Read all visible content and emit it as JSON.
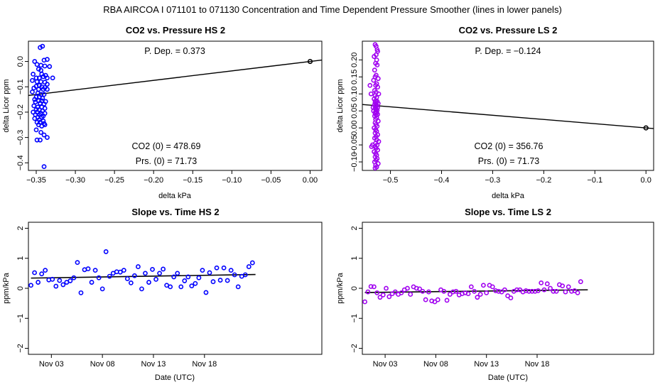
{
  "page_title": "RBA   AIRCOA I   071101 to 071130   Concentration and Time Dependent Pressure Smoother (lines in lower panels)",
  "colors": {
    "hs": "#0000ff",
    "ls": "#a000f0",
    "axis": "#000000",
    "line": "#000000"
  },
  "chart_data": [
    {
      "id": "hs-co2",
      "type": "scatter",
      "title": "CO2 vs. Pressure HS 2",
      "xlabel": "delta kPa",
      "ylabel": "delta Licor ppm",
      "xlim": [
        -0.36,
        0.015
      ],
      "ylim": [
        -0.43,
        0.08
      ],
      "xticks": [
        -0.35,
        -0.3,
        -0.25,
        -0.2,
        -0.15,
        -0.1,
        -0.05,
        0.0
      ],
      "xtick_labels": [
        "−0.35",
        "−0.30",
        "−0.25",
        "−0.20",
        "−0.15",
        "−0.10",
        "−0.05",
        "0.00"
      ],
      "yticks": [
        -0.4,
        -0.3,
        -0.2,
        -0.1,
        0.0
      ],
      "ytick_labels": [
        "−0.4",
        "−0.3",
        "−0.2",
        "−0.1",
        "0.0"
      ],
      "p_dep": "P. Dep. =  0.373",
      "co2_0": "CO2 (0) =  478.69",
      "prs_0": "Prs. (0) =  71.73",
      "fit_line": {
        "slope": 0.373,
        "intercept": 0.0
      },
      "origin_point": [
        0.0,
        0.0
      ],
      "series": [
        {
          "name": "HS",
          "color": "#0000ff",
          "x": [
            -0.349,
            -0.345,
            -0.342,
            -0.34,
            -0.336,
            -0.352,
            -0.344,
            -0.339,
            -0.333,
            -0.347,
            -0.354,
            -0.343,
            -0.338,
            -0.35,
            -0.346,
            -0.341,
            -0.336,
            -0.329,
            -0.355,
            -0.349,
            -0.344,
            -0.339,
            -0.346,
            -0.35,
            -0.343,
            -0.339,
            -0.353,
            -0.347,
            -0.341,
            -0.336,
            -0.355,
            -0.348,
            -0.344,
            -0.34,
            -0.35,
            -0.346,
            -0.342,
            -0.352,
            -0.347,
            -0.343,
            -0.338,
            -0.351,
            -0.345,
            -0.34,
            -0.353,
            -0.348,
            -0.343,
            -0.339,
            -0.35,
            -0.346,
            -0.342,
            -0.354,
            -0.349,
            -0.344,
            -0.339,
            -0.351,
            -0.346,
            -0.341,
            -0.348,
            -0.343,
            -0.352,
            -0.346,
            -0.341,
            -0.349,
            -0.345,
            -0.34,
            -0.347,
            -0.343,
            -0.339,
            -0.35,
            -0.344,
            -0.34,
            -0.336,
            -0.349,
            -0.345,
            -0.34,
            -0.336,
            -0.344
          ],
          "y": [
            -0.012,
            0.055,
            0.06,
            0.005,
            0.008,
            0.0,
            -0.015,
            -0.018,
            -0.02,
            -0.03,
            -0.05,
            -0.05,
            -0.055,
            -0.065,
            -0.065,
            -0.06,
            -0.065,
            -0.065,
            -0.075,
            -0.08,
            -0.08,
            -0.082,
            -0.095,
            -0.098,
            -0.1,
            -0.103,
            -0.105,
            -0.11,
            -0.11,
            -0.11,
            -0.12,
            -0.125,
            -0.13,
            -0.13,
            -0.14,
            -0.14,
            -0.145,
            -0.15,
            -0.155,
            -0.155,
            -0.158,
            -0.16,
            -0.165,
            -0.168,
            -0.175,
            -0.18,
            -0.18,
            -0.185,
            -0.19,
            -0.19,
            -0.195,
            -0.2,
            -0.2,
            -0.205,
            -0.205,
            -0.21,
            -0.21,
            -0.215,
            -0.22,
            -0.22,
            -0.225,
            -0.23,
            -0.235,
            -0.24,
            -0.24,
            -0.245,
            -0.25,
            -0.255,
            -0.25,
            -0.27,
            -0.28,
            -0.29,
            -0.3,
            -0.31,
            -0.31,
            -0.415,
            -0.09,
            -0.035
          ]
        }
      ]
    },
    {
      "id": "ls-co2",
      "type": "scatter",
      "title": "CO2 vs. Pressure LS 2",
      "xlabel": "delta kPa",
      "ylabel": "delta Licor ppm",
      "xlim": [
        -0.555,
        0.015
      ],
      "ylim": [
        -0.125,
        0.255
      ],
      "xticks": [
        -0.5,
        -0.4,
        -0.3,
        -0.2,
        -0.1,
        0.0
      ],
      "xtick_labels": [
        "−0.5",
        "−0.4",
        "−0.3",
        "−0.2",
        "−0.1",
        "0.0"
      ],
      "yticks": [
        -0.1,
        -0.05,
        0.0,
        0.05,
        0.1,
        0.15,
        0.2
      ],
      "ytick_labels": [
        "−0.10",
        "−0.05",
        "0.00",
        "0.05",
        "0.10",
        "0.15",
        "0.20"
      ],
      "p_dep": "P. Dep. =  −0.124",
      "co2_0": "CO2 (0) =  356.76",
      "prs_0": "Prs. (0) =  71.73",
      "fit_line": {
        "slope": -0.124,
        "intercept": 0.0
      },
      "origin_point": [
        0.0,
        0.0
      ],
      "series": [
        {
          "name": "LS",
          "color": "#a000f0",
          "x": [
            -0.53,
            -0.528,
            -0.525,
            -0.532,
            -0.527,
            -0.529,
            -0.526,
            -0.531,
            -0.528,
            -0.53,
            -0.524,
            -0.533,
            -0.527,
            -0.529,
            -0.525,
            -0.531,
            -0.528,
            -0.523,
            -0.53,
            -0.527,
            -0.532,
            -0.529,
            -0.526,
            -0.53,
            -0.524,
            -0.528,
            -0.531,
            -0.527,
            -0.529,
            -0.525,
            -0.53,
            -0.528,
            -0.526,
            -0.533,
            -0.529,
            -0.527,
            -0.53,
            -0.525,
            -0.528,
            -0.531,
            -0.527,
            -0.529,
            -0.524,
            -0.53,
            -0.528,
            -0.526,
            -0.532,
            -0.529,
            -0.527,
            -0.53,
            -0.525,
            -0.528,
            -0.531,
            -0.527,
            -0.523,
            -0.529,
            -0.526,
            -0.53,
            -0.528,
            -0.525,
            -0.532,
            -0.529,
            -0.527,
            -0.53,
            -0.526,
            -0.528,
            -0.531,
            -0.524,
            -0.529,
            -0.527,
            -0.53,
            -0.526,
            -0.528,
            -0.54,
            -0.538,
            -0.535,
            -0.537,
            -0.534
          ],
          "y": [
            0.245,
            0.24,
            0.225,
            0.21,
            0.2,
            0.19,
            0.185,
            0.17,
            0.155,
            0.15,
            0.145,
            0.14,
            0.13,
            0.125,
            0.12,
            0.11,
            0.105,
            0.1,
            0.095,
            0.09,
            0.085,
            0.08,
            0.078,
            0.075,
            0.072,
            0.07,
            0.068,
            0.065,
            0.063,
            0.06,
            0.058,
            0.055,
            0.052,
            0.05,
            0.048,
            0.045,
            0.043,
            0.04,
            0.038,
            0.035,
            0.03,
            0.025,
            0.02,
            0.015,
            0.01,
            0.005,
            0.0,
            -0.005,
            -0.01,
            -0.015,
            -0.02,
            -0.025,
            -0.03,
            -0.035,
            -0.04,
            -0.045,
            -0.05,
            -0.055,
            -0.06,
            -0.065,
            -0.07,
            -0.075,
            -0.08,
            -0.085,
            -0.09,
            -0.095,
            -0.1,
            -0.105,
            -0.11,
            -0.115,
            -0.118,
            0.23,
            0.215,
            0.125,
            0.1,
            -0.05,
            -0.055,
            0.06
          ]
        }
      ]
    },
    {
      "id": "hs-slope",
      "type": "scatter",
      "title": "Slope vs. Time HS 2",
      "xlabel": "Date (UTC)",
      "ylabel": "ppm/kPa",
      "xlim": [
        0.75,
        29.5
      ],
      "ylim": [
        -2.2,
        2.2
      ],
      "xticks": [
        3,
        8,
        13,
        18
      ],
      "xtick_labels": [
        "Nov 03",
        "Nov 08",
        "Nov 13",
        "Nov 18"
      ],
      "yticks": [
        -2,
        -1,
        0,
        1,
        2
      ],
      "ytick_labels": [
        "−2",
        "−1",
        "0",
        "1",
        "2"
      ],
      "trend": {
        "x": [
          1.0,
          23.0
        ],
        "y": [
          0.34,
          0.46
        ]
      },
      "series": [
        {
          "name": "HS",
          "color": "#0000ff",
          "x": [
            1.0,
            1.35,
            1.7,
            2.05,
            2.4,
            2.75,
            3.1,
            3.45,
            3.8,
            4.15,
            4.5,
            4.85,
            5.2,
            5.55,
            5.9,
            6.25,
            6.6,
            6.95,
            7.3,
            7.65,
            8.0,
            8.35,
            8.7,
            9.05,
            9.4,
            9.75,
            10.1,
            10.45,
            10.8,
            11.15,
            11.5,
            11.85,
            12.2,
            12.55,
            12.9,
            13.25,
            13.6,
            13.95,
            14.3,
            14.65,
            15.0,
            15.35,
            15.7,
            16.05,
            16.4,
            16.75,
            17.1,
            17.45,
            17.8,
            18.15,
            18.5,
            18.85,
            19.2,
            19.55,
            19.9,
            20.25,
            20.6,
            20.95,
            21.3,
            21.65,
            22.0,
            22.35,
            22.7
          ],
          "y": [
            0.1,
            0.52,
            0.2,
            0.48,
            0.6,
            0.28,
            0.3,
            0.07,
            0.26,
            0.12,
            0.2,
            0.25,
            0.35,
            0.86,
            -0.15,
            0.62,
            0.65,
            0.2,
            0.6,
            0.35,
            -0.02,
            1.22,
            0.4,
            0.5,
            0.55,
            0.54,
            0.6,
            0.32,
            0.18,
            0.42,
            0.72,
            -0.02,
            0.5,
            0.2,
            0.63,
            0.3,
            0.5,
            0.64,
            0.1,
            0.05,
            0.38,
            0.5,
            0.05,
            0.25,
            0.38,
            0.08,
            0.16,
            0.35,
            0.6,
            -0.14,
            0.52,
            0.22,
            0.68,
            0.27,
            0.68,
            0.26,
            0.6,
            0.45,
            0.05,
            0.4,
            0.45,
            0.72,
            0.85
          ]
        }
      ]
    },
    {
      "id": "ls-slope",
      "type": "scatter",
      "title": "Slope vs. Time LS 2",
      "xlabel": "Date (UTC)",
      "ylabel": "ppm/kPa",
      "xlim": [
        0.75,
        29.5
      ],
      "ylim": [
        -2.2,
        2.2
      ],
      "xticks": [
        3,
        8,
        13,
        18
      ],
      "xtick_labels": [
        "Nov 03",
        "Nov 08",
        "Nov 13",
        "Nov 18"
      ],
      "yticks": [
        -2,
        -1,
        0,
        1,
        2
      ],
      "ytick_labels": [
        "−2",
        "−1",
        "0",
        "1",
        "2"
      ],
      "trend": {
        "x": [
          1.0,
          23.0
        ],
        "y": [
          -0.14,
          -0.05
        ]
      },
      "series": [
        {
          "name": "LS",
          "color": "#a000f0",
          "x": [
            1.0,
            1.3,
            1.6,
            1.9,
            2.2,
            2.5,
            2.8,
            3.1,
            3.4,
            3.7,
            4.0,
            4.3,
            4.6,
            4.9,
            5.2,
            5.5,
            5.8,
            6.1,
            6.4,
            6.7,
            7.0,
            7.3,
            7.6,
            7.9,
            8.2,
            8.5,
            8.8,
            9.1,
            9.4,
            9.7,
            10.0,
            10.3,
            10.6,
            10.9,
            11.2,
            11.5,
            11.8,
            12.1,
            12.4,
            12.7,
            13.0,
            13.3,
            13.6,
            13.9,
            14.2,
            14.5,
            14.8,
            15.1,
            15.4,
            15.7,
            16.0,
            16.3,
            16.6,
            16.9,
            17.2,
            17.5,
            17.8,
            18.1,
            18.4,
            18.7,
            19.0,
            19.3,
            19.6,
            19.9,
            20.2,
            20.5,
            20.8,
            21.1,
            21.4,
            21.7,
            22.0,
            22.3
          ],
          "y": [
            -0.45,
            -0.12,
            0.06,
            0.05,
            -0.15,
            -0.3,
            -0.22,
            0.0,
            -0.28,
            -0.18,
            -0.12,
            -0.2,
            -0.15,
            -0.05,
            0.0,
            -0.2,
            0.05,
            0.0,
            -0.02,
            -0.1,
            -0.38,
            -0.12,
            -0.42,
            -0.45,
            -0.38,
            -0.05,
            -0.1,
            -0.4,
            -0.2,
            -0.12,
            -0.1,
            -0.22,
            -0.18,
            -0.15,
            -0.18,
            0.05,
            -0.1,
            -0.3,
            -0.2,
            0.1,
            -0.15,
            0.1,
            0.05,
            -0.08,
            -0.1,
            -0.12,
            -0.05,
            -0.25,
            -0.32,
            -0.1,
            -0.05,
            -0.05,
            -0.12,
            -0.08,
            -0.1,
            -0.1,
            -0.1,
            -0.08,
            0.18,
            -0.05,
            0.15,
            0.0,
            -0.1,
            -0.1,
            0.12,
            0.08,
            -0.12,
            0.05,
            -0.1,
            -0.08,
            -0.15,
            0.22
          ]
        }
      ]
    }
  ]
}
